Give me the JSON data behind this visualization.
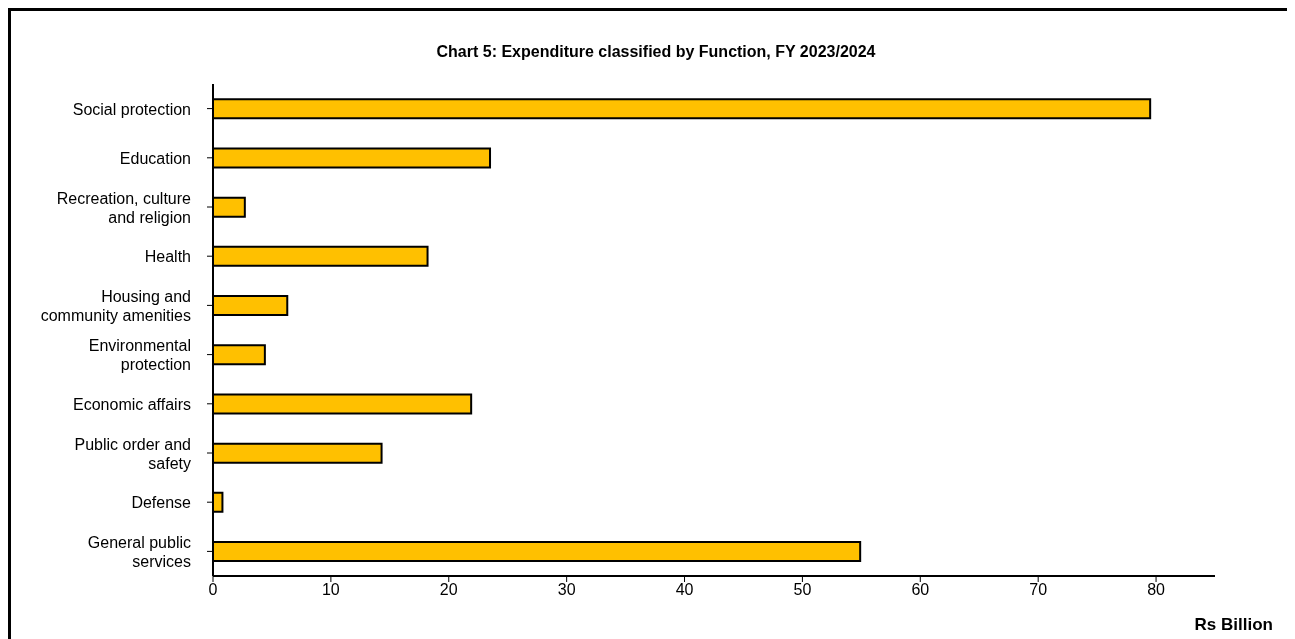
{
  "chart_data": {
    "type": "bar",
    "orientation": "horizontal",
    "title": "Chart 5: Expenditure classified by Function, FY 2023/2024",
    "xlabel": "Rs Billion",
    "categories": [
      "Social protection",
      "Education",
      "Recreation, culture and religion",
      "Health",
      "Housing and community amenities",
      "Environmental protection",
      "Economic affairs",
      "Public order and safety",
      "Defense",
      "General public services"
    ],
    "values": [
      79.5,
      23.5,
      2.7,
      18.2,
      6.3,
      4.4,
      21.9,
      14.3,
      0.8,
      54.9
    ],
    "color": "#ffc000",
    "xlim": [
      0,
      85
    ],
    "xticks": [
      0,
      10,
      20,
      30,
      40,
      50,
      60,
      70,
      80
    ],
    "grid": false,
    "legend": false
  }
}
